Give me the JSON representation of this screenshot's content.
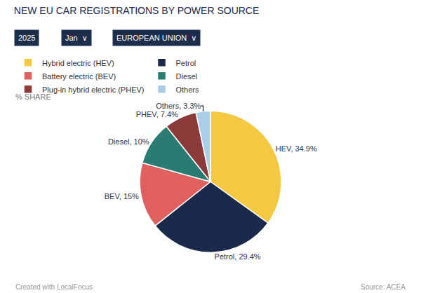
{
  "chart_data": {
    "type": "pie",
    "title": "NEW EU CAR REGISTRATIONS BY POWER SOURCE",
    "categories": [
      "Hybrid electric (HEV)",
      "Petrol",
      "Battery electric (BEV)",
      "Diesel",
      "Plug-in hybrid electric (PHEV)",
      "Others"
    ],
    "values": [
      34.9,
      29.4,
      15.0,
      10.0,
      7.4,
      3.3
    ],
    "value_labels": [
      "HEV, 34.9%",
      "Petrol, 29.4%",
      "BEV, 15%",
      "Diesel, 10%",
      "PHEV, 7.4%",
      "Others, 3.3%"
    ],
    "colors": [
      "#F5C842",
      "#1B2A4A",
      "#E06060",
      "#2A7B72",
      "#8B3A3A",
      "#AACDE8"
    ],
    "data_labels": true,
    "legend": "top left",
    "annotations": [
      "2025",
      "Jan  ∨",
      "EUROPEAN UNION  ∨",
      "% SHARE",
      "Created with LocalFocus",
      "Source: ACEA"
    ]
  }
}
